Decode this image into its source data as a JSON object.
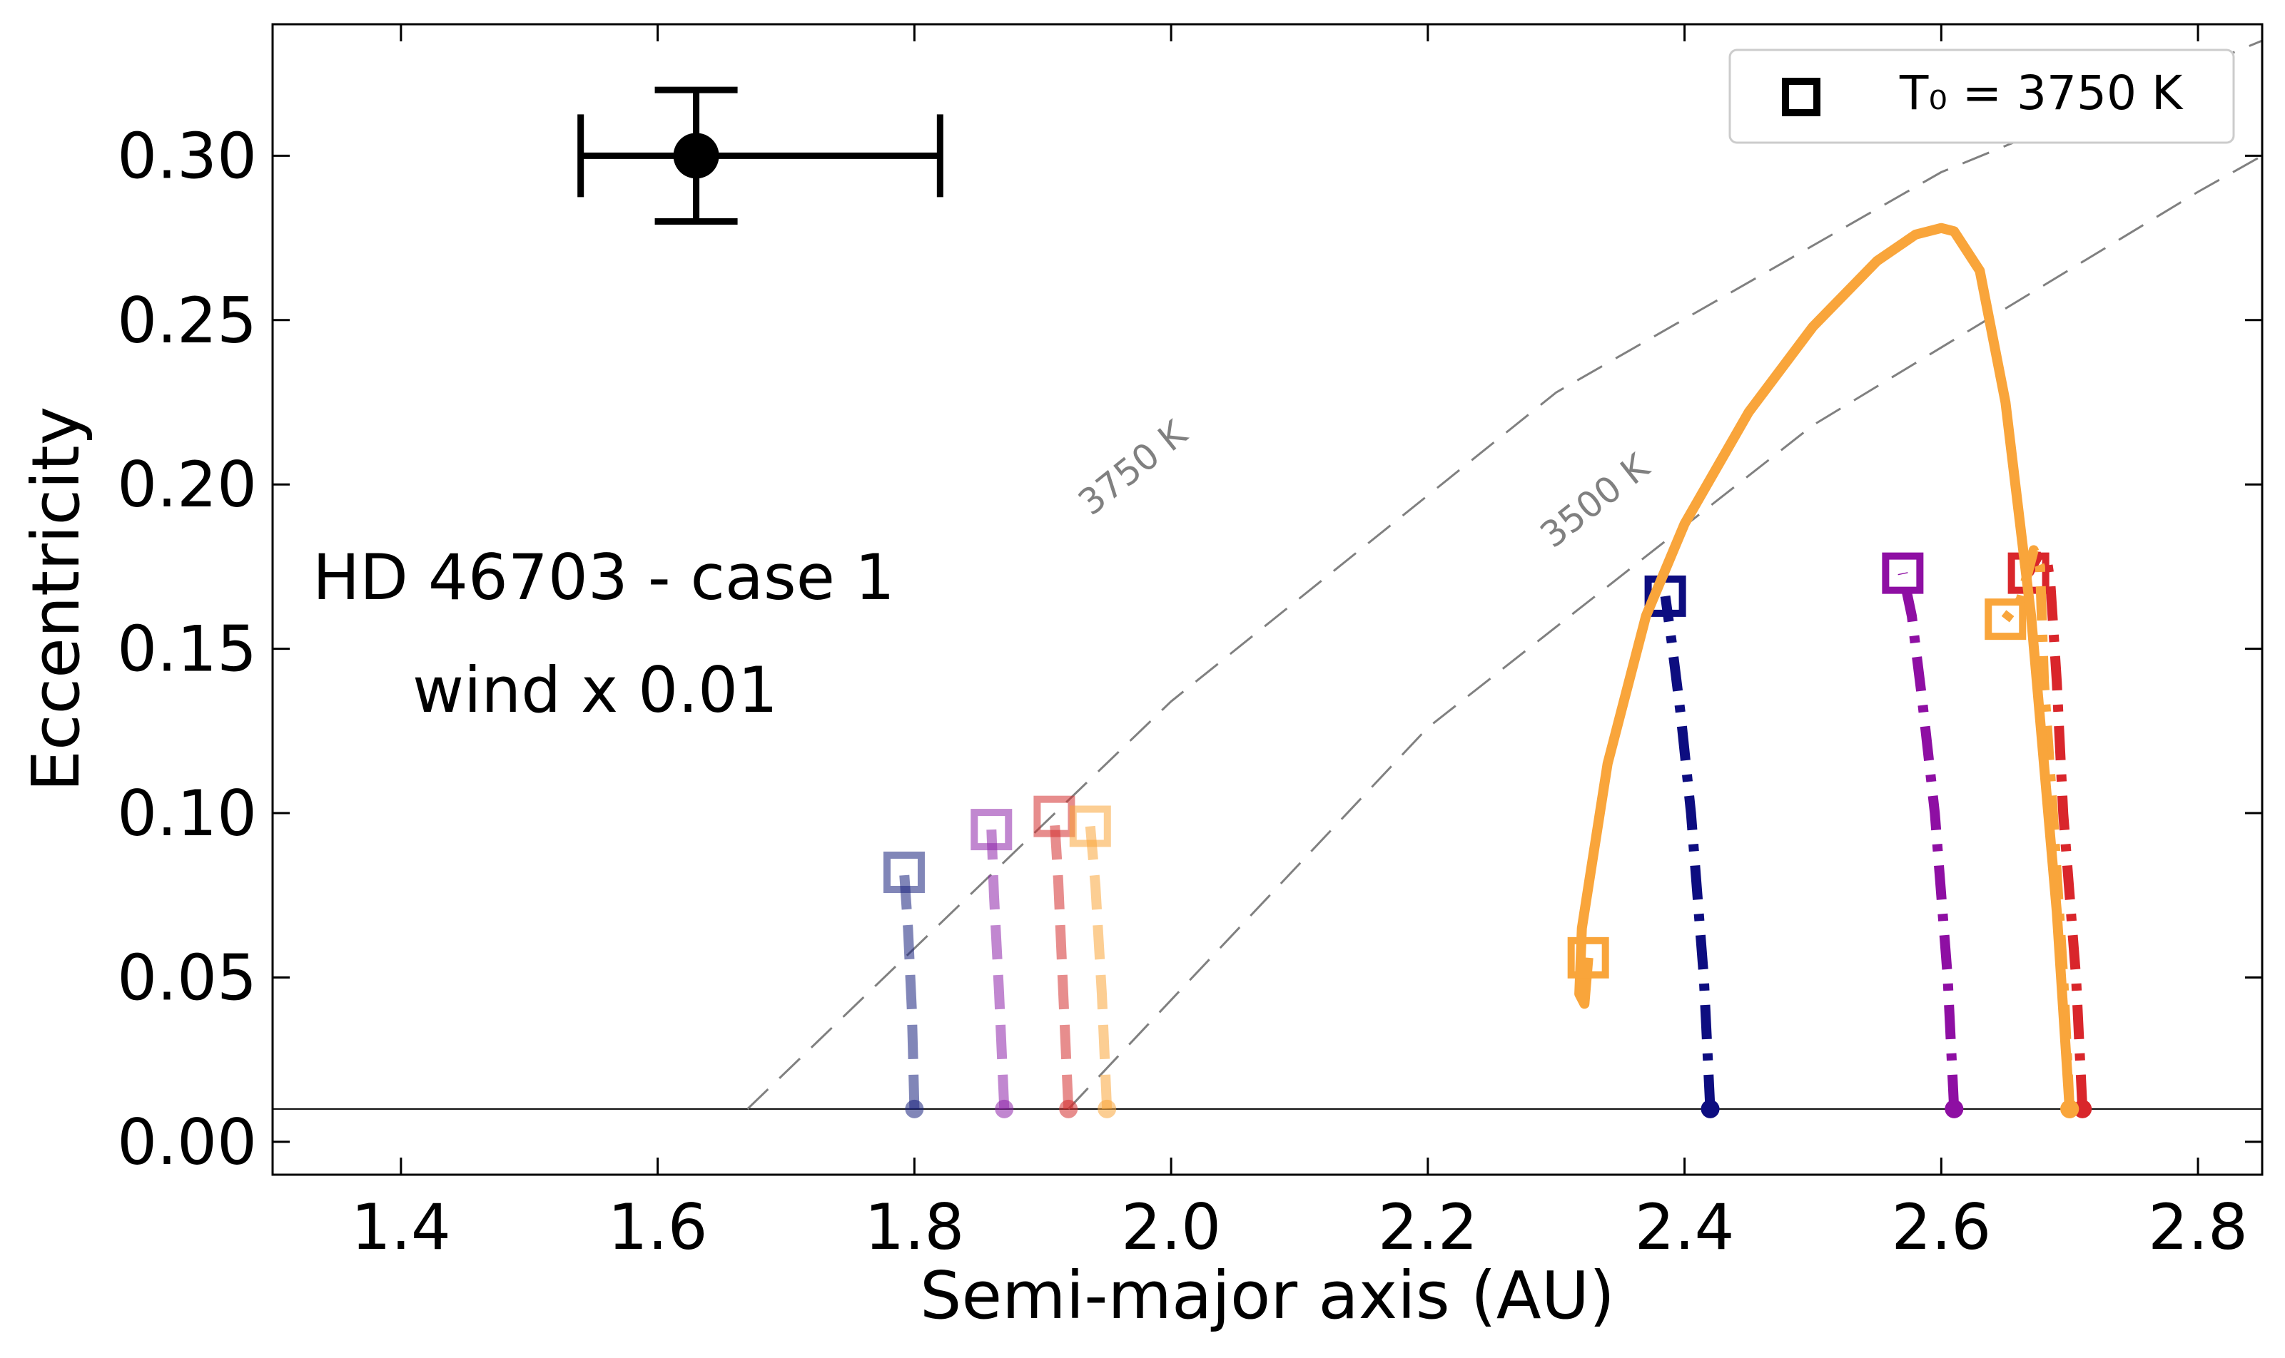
{
  "chart_data": {
    "type": "line",
    "xlabel": "Semi-major axis (AU)",
    "ylabel": "Eccentricity",
    "xlim": [
      1.3,
      2.85
    ],
    "ylim": [
      -0.01,
      0.34
    ],
    "xticks": [
      1.4,
      1.6,
      1.8,
      2.0,
      2.2,
      2.4,
      2.6,
      2.8
    ],
    "yticks": [
      0.0,
      0.05,
      0.1,
      0.15,
      0.2,
      0.25,
      0.3
    ],
    "xtick_labels": [
      "1.4",
      "1.6",
      "1.8",
      "2.0",
      "2.2",
      "2.4",
      "2.6",
      "2.8"
    ],
    "ytick_labels": [
      "0.00",
      "0.05",
      "0.10",
      "0.15",
      "0.20",
      "0.25",
      "0.30"
    ],
    "grid": false,
    "legend_position": "top-right",
    "legend": {
      "marker": "open square",
      "label": "T₀ = 3750 K"
    },
    "annotations": {
      "line1": "HD 46703 - case 1",
      "line2": "wind x 0.01"
    },
    "observed_point": {
      "x": 1.63,
      "y": 0.3,
      "x_err": [
        0.09,
        0.19
      ],
      "y_err": 0.02,
      "color": "#000000"
    },
    "horizontal_line": {
      "y": 0.01,
      "color": "#000000"
    },
    "reference_curves": [
      {
        "label": "3750 K",
        "color": "#808080",
        "x": [
          1.67,
          2.0,
          2.3,
          2.6,
          2.85
        ],
        "y": [
          0.01,
          0.134,
          0.228,
          0.295,
          0.335
        ],
        "label_x": 1.97,
        "label_y": 0.205
      },
      {
        "label": "3500 K",
        "color": "#808080",
        "x": [
          1.92,
          2.2,
          2.5,
          2.8,
          2.85
        ],
        "y": [
          0.01,
          0.126,
          0.218,
          0.289,
          0.3
        ],
        "label_x": 2.33,
        "label_y": 0.195
      }
    ],
    "series": [
      {
        "color": "#1a237e",
        "style": "dashed",
        "alpha": 0.55,
        "x": [
          1.8,
          1.798,
          1.795,
          1.792
        ],
        "y": [
          0.01,
          0.04,
          0.065,
          0.082
        ],
        "start": [
          1.8,
          0.01
        ],
        "end": [
          1.792,
          0.082
        ]
      },
      {
        "color": "#8e24aa",
        "style": "dashed",
        "alpha": 0.55,
        "x": [
          1.87,
          1.866,
          1.862,
          1.86
        ],
        "y": [
          0.01,
          0.045,
          0.075,
          0.095
        ],
        "start": [
          1.87,
          0.01
        ],
        "end": [
          1.86,
          0.095
        ]
      },
      {
        "color": "#d32f2f",
        "style": "dashed",
        "alpha": 0.55,
        "x": [
          1.92,
          1.916,
          1.912,
          1.909
        ],
        "y": [
          0.01,
          0.045,
          0.08,
          0.099
        ],
        "start": [
          1.92,
          0.01
        ],
        "end": [
          1.909,
          0.099
        ]
      },
      {
        "color": "#f9a53b",
        "style": "dashed",
        "alpha": 0.55,
        "x": [
          1.95,
          1.946,
          1.941,
          1.937
        ],
        "y": [
          0.01,
          0.045,
          0.078,
          0.096
        ],
        "start": [
          1.95,
          0.01
        ],
        "end": [
          1.937,
          0.096
        ]
      },
      {
        "color": "#0d0d80",
        "style": "dashdot",
        "alpha": 1,
        "x": [
          2.42,
          2.415,
          2.405,
          2.397,
          2.39,
          2.385
        ],
        "y": [
          0.01,
          0.05,
          0.1,
          0.13,
          0.152,
          0.166
        ],
        "start": [
          2.42,
          0.01
        ],
        "end": [
          2.385,
          0.166
        ]
      },
      {
        "color": "#8e0fa3",
        "style": "dashdot",
        "alpha": 1,
        "x": [
          2.61,
          2.605,
          2.595,
          2.585,
          2.577,
          2.57
        ],
        "y": [
          0.01,
          0.05,
          0.1,
          0.135,
          0.16,
          0.173
        ],
        "start": [
          2.61,
          0.01
        ],
        "end": [
          2.57,
          0.173
        ]
      },
      {
        "color": "#d9262b",
        "style": "dashdot",
        "alpha": 1,
        "x": [
          2.71,
          2.705,
          2.695,
          2.69,
          2.685,
          2.682,
          2.675,
          2.668
        ],
        "y": [
          0.01,
          0.05,
          0.1,
          0.14,
          0.17,
          0.178,
          0.178,
          0.173
        ],
        "start": [
          2.71,
          0.01
        ],
        "end": [
          2.668,
          0.173
        ]
      },
      {
        "color": "#f9a53b",
        "style": "dashdot",
        "alpha": 1,
        "x": [
          2.7,
          2.695,
          2.687,
          2.68,
          2.677,
          2.672,
          2.662,
          2.65
        ],
        "y": [
          0.01,
          0.05,
          0.1,
          0.14,
          0.175,
          0.18,
          0.165,
          0.159
        ],
        "start": [
          2.7,
          0.01
        ],
        "end": [
          2.65,
          0.159
        ]
      },
      {
        "color": "#f9a53b",
        "style": "solid",
        "alpha": 1,
        "x": [
          2.7,
          2.69,
          2.67,
          2.65,
          2.63,
          2.61,
          2.6,
          2.58,
          2.55,
          2.5,
          2.45,
          2.4,
          2.37,
          2.34,
          2.32,
          2.318,
          2.322,
          2.325
        ],
        "y": [
          0.01,
          0.07,
          0.16,
          0.225,
          0.265,
          0.277,
          0.278,
          0.276,
          0.268,
          0.248,
          0.222,
          0.188,
          0.16,
          0.115,
          0.065,
          0.045,
          0.042,
          0.056
        ],
        "start": [
          2.7,
          0.01
        ],
        "end": [
          2.325,
          0.056
        ]
      }
    ]
  }
}
